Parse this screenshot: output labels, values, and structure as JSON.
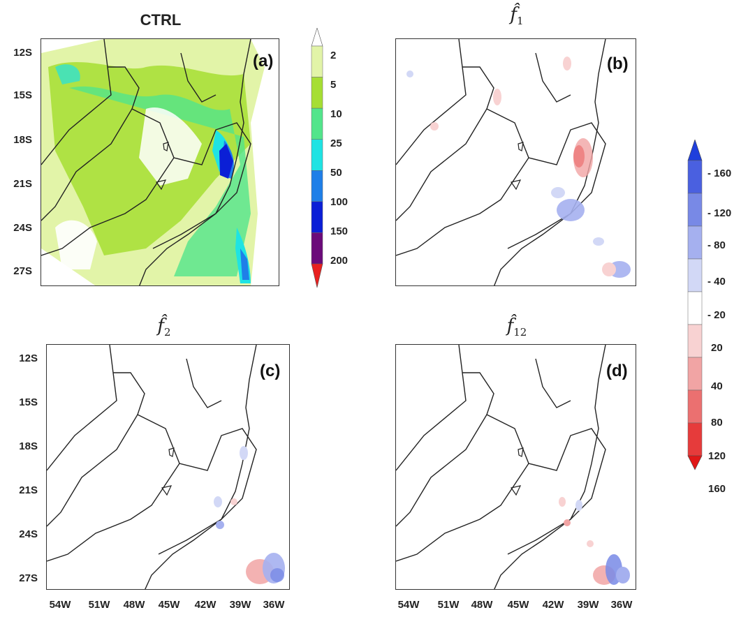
{
  "panels": [
    {
      "id": "a",
      "title": "CTRL",
      "letter": "(a)"
    },
    {
      "id": "b",
      "title_base": "f̂",
      "title_sub": "1",
      "letter": "(b)"
    },
    {
      "id": "c",
      "title_base": "f̂",
      "title_sub": "2",
      "letter": "(c)"
    },
    {
      "id": "d",
      "title_base": "f̂",
      "title_sub": "12",
      "letter": "(d)"
    }
  ],
  "latitude_labels": [
    "12S",
    "15S",
    "18S",
    "21S",
    "24S",
    "27S"
  ],
  "longitude_labels": [
    "54W",
    "51W",
    "48W",
    "45W",
    "42W",
    "39W",
    "36W"
  ],
  "colorbar_ctrl": {
    "labels": [
      "2",
      "5",
      "10",
      "25",
      "50",
      "100",
      "150",
      "200"
    ],
    "colors": [
      "#ffffff",
      "#e2f4a8",
      "#a6de33",
      "#52e58b",
      "#1fe3e3",
      "#1f7fe8",
      "#0b1fd6",
      "#6b0a7a",
      "#e8201f"
    ]
  },
  "colorbar_diff": {
    "labels": [
      "- 160",
      "- 120",
      "- 80",
      "- 40",
      "- 20",
      "20",
      "40",
      "80",
      "120",
      "160"
    ],
    "colors": [
      "#1f3fdc",
      "#4a60e0",
      "#7889e6",
      "#a5b0ef",
      "#d2d8f6",
      "#ffffff",
      "#f8d2d2",
      "#f1a4a4",
      "#eb7070",
      "#e63b3b",
      "#e01818"
    ]
  }
}
